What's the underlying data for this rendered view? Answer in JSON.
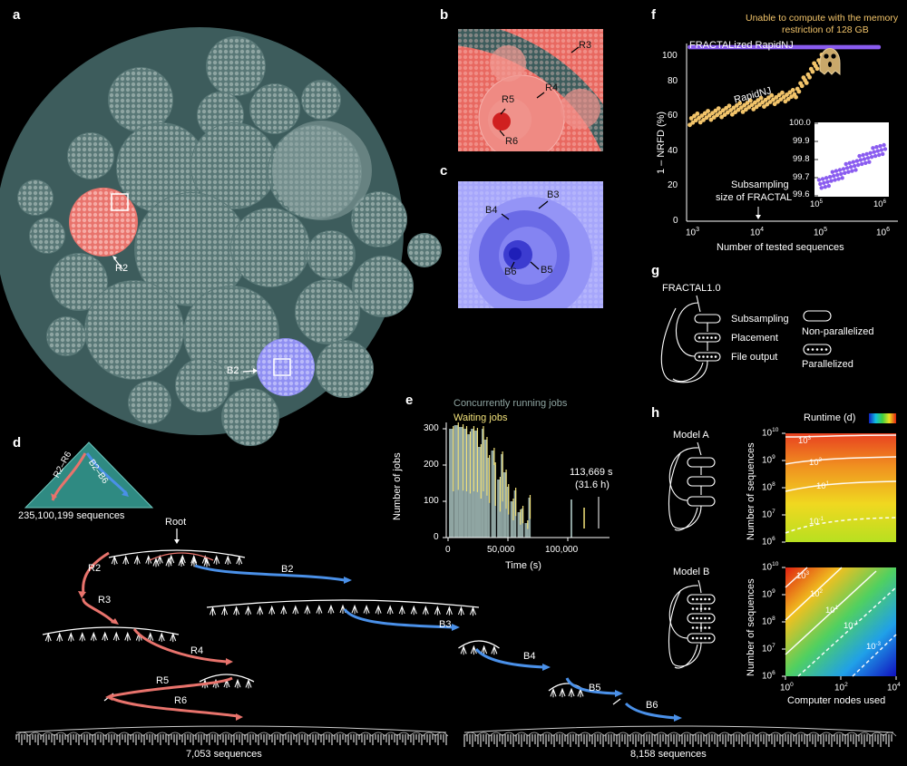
{
  "panels": {
    "a": "a",
    "b": "b",
    "c": "c",
    "d": "d",
    "e": "e",
    "f": "f",
    "g": "g",
    "h": "h"
  },
  "panel_a": {
    "label_r2": "R2",
    "label_b2": "B2"
  },
  "panel_b": {
    "labels": [
      "R3",
      "R4",
      "R5",
      "R6"
    ]
  },
  "panel_c": {
    "labels": [
      "B3",
      "B4",
      "B6",
      "B5"
    ]
  },
  "panel_d": {
    "triangle_left": "R2–R6",
    "triangle_right": "B2–B6",
    "total_sequences": "235,100,199 sequences",
    "root": "Root",
    "red_labels": [
      "R2",
      "R3",
      "R4",
      "R5",
      "R6"
    ],
    "blue_labels": [
      "B2",
      "B3",
      "B4",
      "B5",
      "B6"
    ],
    "left_count": "7,053 sequences",
    "right_count": "8,158 sequences"
  },
  "panel_e": {
    "legend_running": "Concurrently running jobs",
    "legend_waiting": "Waiting jobs",
    "ylabel": "Number of jobs",
    "xlabel": "Time (s)",
    "annotation_line1": "113,669 s",
    "annotation_line2": "(31.6 h)",
    "yticks": [
      "0",
      "100",
      "200",
      "300"
    ],
    "xticks": [
      "0",
      "50,000",
      "100,000"
    ],
    "colors": {
      "running": "#8fa5a2",
      "waiting": "#f2e27a"
    }
  },
  "panel_f": {
    "warning_line1": "Unable to compute with the memory",
    "warning_line2": "restriction of 128 GB",
    "series_fractal": "FRACTALized RapidNJ",
    "series_rapidnj": "RapidNJ",
    "ylabel": "1 – NRFD (%)",
    "xlabel": "Number of tested sequences",
    "subsampling_line1": "Subsampling",
    "subsampling_line2": "size of FRACTAL",
    "yticks": [
      "0",
      "20",
      "40",
      "60",
      "80",
      "100"
    ],
    "xticks": [
      "10",
      "10",
      "10",
      "10"
    ],
    "xtick_exp": [
      "3",
      "4",
      "5",
      "6"
    ],
    "inset_yticks": [
      "99.6",
      "99.7",
      "99.8",
      "99.9",
      "100.0"
    ],
    "inset_xticks": [
      "10",
      "10"
    ],
    "inset_xtick_exp": [
      "5",
      "6"
    ],
    "colors": {
      "fractal": "#8a5cf0",
      "rapidnj": "#f2c46a"
    }
  },
  "panel_g": {
    "title": "FRACTAL1.0",
    "steps": [
      "Subsampling",
      "Placement",
      "File output"
    ],
    "legend_non": "Non-parallelized",
    "legend_par": "Parallelized"
  },
  "panel_h": {
    "runtime_label": "Runtime (d)",
    "model_a": "Model A",
    "model_b": "Model B",
    "ylabel": "Number of sequences",
    "xlabel": "Computer nodes used",
    "yticks": [
      "10",
      "10",
      "10",
      "10",
      "10"
    ],
    "ytick_exp": [
      "6",
      "7",
      "8",
      "9",
      "10"
    ],
    "xticks": [
      "10",
      "10",
      "10"
    ],
    "xtick_exp": [
      "0",
      "2",
      "4"
    ],
    "contours_a": [
      "10",
      "10",
      "10",
      "10"
    ],
    "contours_a_exp": [
      "3",
      "2",
      "1",
      "-1"
    ],
    "contours_b": [
      "10",
      "10",
      "10",
      "10",
      "10"
    ],
    "contours_b_exp": [
      "3",
      "2",
      "1",
      "-1",
      "-3"
    ]
  }
}
